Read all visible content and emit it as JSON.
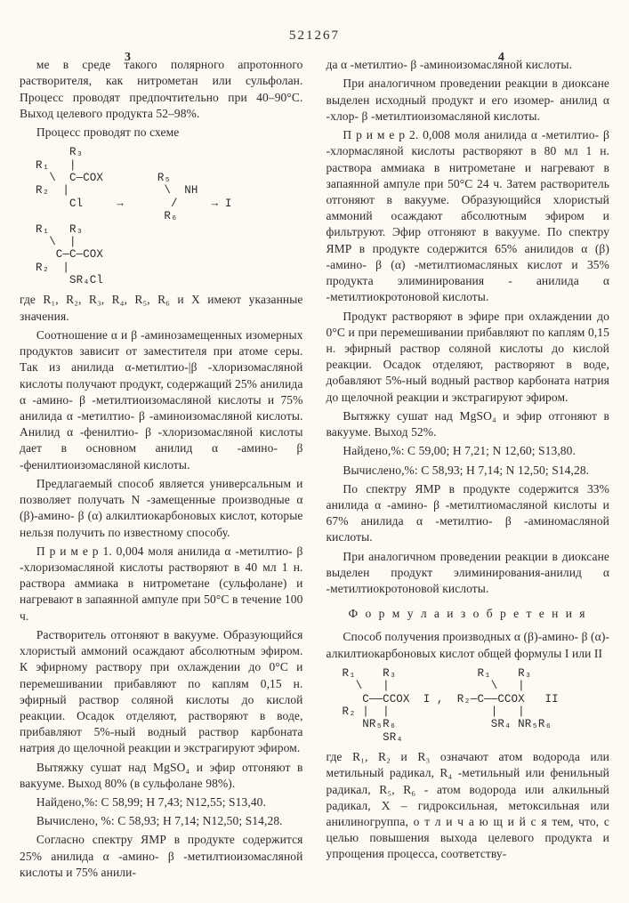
{
  "patent_number": "521267",
  "page_left": "3",
  "page_right": "4",
  "linenums": [
    "5",
    "10",
    "15",
    "20",
    "25",
    "30",
    "35",
    "40",
    "45",
    "50",
    "55",
    "60"
  ],
  "left": {
    "p0": "ме в среде такого полярного апротонного растворителя, как нитрометан или сульфолан. Процесс проводят предпочтительно при 40–90°С. Выход целевого продукта 52–98%.",
    "p1": "Процесс проводят по схеме",
    "chem1": "     R₃\nR₁   |\n  \\  C—COX        R₅\nR₂  |              \\  NH\n     Cl     →       /     → I\n                   R₆\nR₁   R₃\n  \\  |\n   C—C—COX\nR₂  |\n     SR₄Cl",
    "p2": "где R₁, R₂, R₃, R₄, R₅, R₆ и X имеют указанные значения.",
    "p3": "Соотношение α и β -аминозамещенных изомерных продуктов зависит от заместителя при атоме серы. Так из анилида α-метилтио-|β -хлоризомасляной кислоты получают продукт, содержащий 25% анилида α -амино- β -метилтиоизомасляной кислоты и 75% анилида α -метилтио- β -аминоизомасляной кислоты. Анилид α -фенилтио- β -хлоризомасляной кислоты дает в основном анилид α -амино- β -фенилтиоизомасляной кислоты.",
    "p4": "Предлагаемый способ является универсальным и позволяет получать N -замещенные производные α (β)-амино- β (α) алкилтиокарбоновых кислот, которые нельзя получить по известному способу.",
    "p5": "П р и м е р 1. 0,004 моля анилида α -метилтио- β -хлоризомасляной кислоты растворяют в 40 мл 1 н. раствора аммиака в нитрометане (сульфолане) и нагревают в запаянной ампуле при 50°С в течение 100 ч.",
    "p6": "Растворитель отгоняют в вакууме. Образующийся хлористый аммоний осаждают абсолютным эфиром. К эфирному раствору при охлаждении до 0°С и перемешивании прибавляют по каплям 0,15 н. эфирный раствор соляной кислоты до кислой реакции. Осадок отделяют, растворяют в воде, прибавляют 5%-ный водный раствор карбоната натрия до щелочной реакции и экстрагируют эфиром.",
    "p7": "Вытяжку сушат над MgSO₄ и эфир отгоняют в вакууме. Выход 80% (в сульфолане 98%).",
    "p8": "Найдено,%: С 58,99; H 7,43; N12,55; S13,40.",
    "p9": "Вычислено, %: С 58,93; H 7,14; N12,50; S14,28.",
    "p10": "Согласно спектру ЯМР в продукте содержится 25% анилида α -амино- β -метилтиоизомасляной кислоты и 75% анили-"
  },
  "right": {
    "p0": "да α -метилтио- β -аминоизомасляной кислоты.",
    "p1": "При аналогичном проведении реакции в диоксане выделен исходный продукт и его изомер- анилид α -хлор- β -метилтиоизомасляной кислоты.",
    "p2": "П р и м е р 2. 0,008 моля анилида α -метилтио- β -хлормасляной кислоты растворяют в 80 мл 1 н. раствора аммиака в нитрометане и нагревают в запаянной ампуле при 50°С 24 ч. Затем растворитель отгоняют в вакууме. Образующийся хлористый аммоний осаждают абсолютным эфиром и фильтруют. Эфир отгоняют в вакууме. По спектру ЯМР в продукте содержится 65% анилидов α (β) -амино- β (α) -метилтиомасляных кислот и 35% продукта элиминирования - анилида α -метилтиокротоновой кислоты.",
    "p3": "Продукт растворяют в эфире при охлаждении до 0°С и при перемешивании прибавляют по каплям 0,15 н. эфирный раствор соляной кислоты до кислой реакции. Осадок отделяют, растворяют в воде, добавляют 5%-ный водный раствор карбоната натрия до щелочной реакции и экстрагируют эфиром.",
    "p4": "Вытяжку сушат над MgSO₄ и эфир отгоняют в вакууме. Выход 52%.",
    "p5": "Найдено,%: С 59,00; H 7,21; N 12,60; S13,80.",
    "p6": "Вычислено,%: С 58,93; H 7,14; N 12,50; S14,28.",
    "p7": "По спектру ЯМР в продукте содержится 33% анилида α -амино- β -метилтиомасляной кислоты и 67% анилида α -метилтио- β -аминомасляной кислоты.",
    "p8": "При аналогичном проведении реакции в диоксане выделен продукт элиминирования-анилид α -метилтиокротоновой кислоты.",
    "claims_heading": "Ф о р м у л а  и з о б р е т е н и я",
    "p9": "Способ получения производных α (β)-амино- β (α)-алкилтиокарбоновых кислот общей формулы I или II",
    "chem2": "R₁    R₃            R₁    R₃\n  \\   |               \\   |\n   C——CCOX  I ,  R₂—C——CCOX   II\nR₂ |  |               |   |\n   NR₅R₆              SR₄ NR₅R₆\n      SR₄",
    "p10": "где R₁, R₂ и R₃ означают атом водорода или метильный радикал, R₄ -метильный или фенильный радикал, R₅, R₆ - атом водорода или алкильный радикал, X – гидроксильная, метоксильная или анилиногруппа, о т л и ч а ю щ и й с я тем, что, с целью повышения выхода целевого продукта и упрощения процесса, соответству-"
  }
}
